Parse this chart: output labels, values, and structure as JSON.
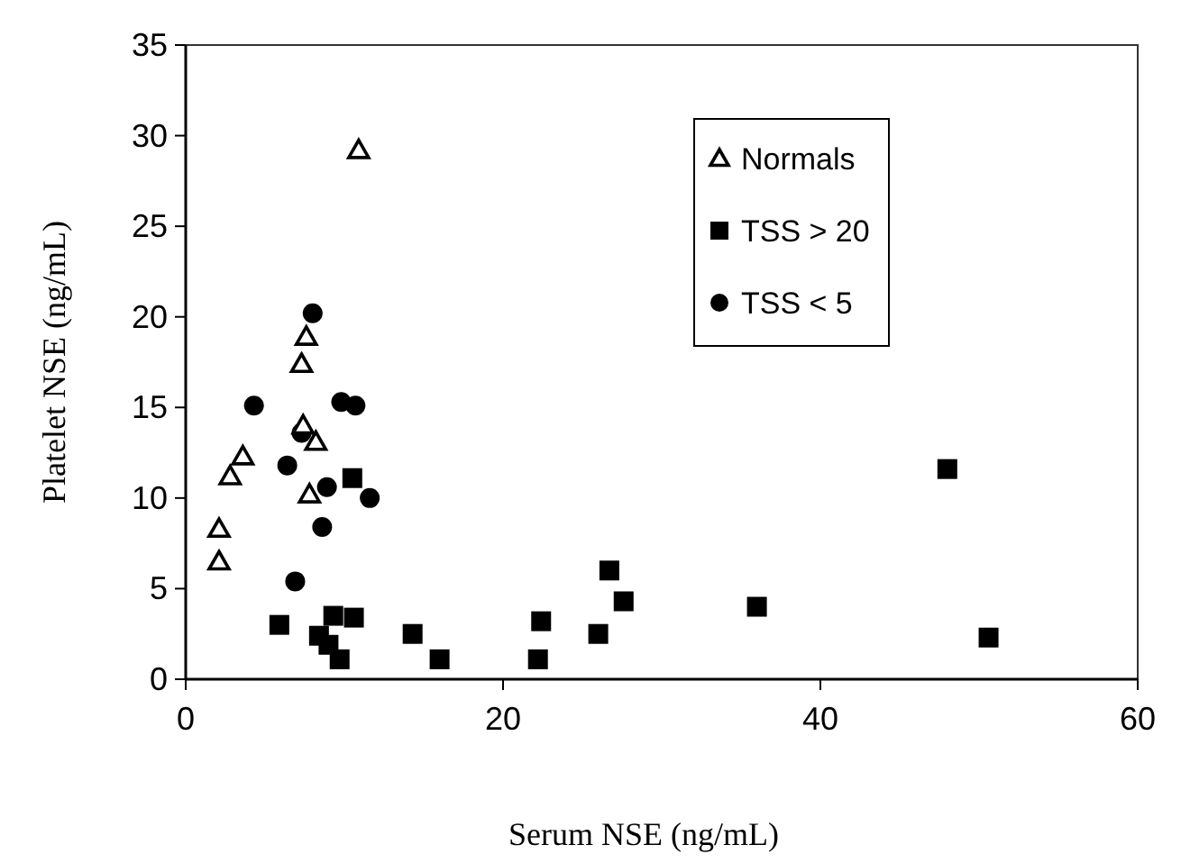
{
  "chart_data": {
    "type": "scatter",
    "xlabel": "Serum NSE (ng/mL)",
    "ylabel": "Platelet NSE (ng/mL)",
    "xlim": [
      0,
      60
    ],
    "xticks": [
      0,
      20,
      40,
      60
    ],
    "ylim": [
      0,
      35
    ],
    "yticks": [
      0,
      5,
      10,
      15,
      20,
      25,
      30,
      35
    ],
    "grid": false,
    "legend": "top right",
    "series": [
      {
        "name": "Normals",
        "color": "#000000",
        "marker": "triangle",
        "x": [
          2.1,
          2.1,
          2.8,
          3.6,
          7.3,
          7.6,
          7.4,
          8.2,
          7.8,
          10.9
        ],
        "values": [
          8.3,
          6.5,
          11.2,
          12.3,
          17.4,
          18.9,
          14.0,
          13.1,
          10.2,
          29.2
        ]
      },
      {
        "name": "TSS > 20",
        "color": "#000000",
        "marker": "square",
        "x": [
          5.9,
          10.5,
          9.3,
          10.6,
          8.4,
          9.7,
          9.0,
          14.3,
          16.0,
          22.4,
          22.2,
          26.0,
          26.7,
          27.6,
          36.0,
          48.0,
          50.6
        ],
        "values": [
          3.0,
          11.1,
          3.5,
          3.4,
          2.4,
          1.1,
          1.9,
          2.5,
          1.1,
          3.2,
          1.1,
          2.5,
          6.0,
          4.3,
          4.0,
          11.6,
          2.3
        ]
      },
      {
        "name": "TSS < 5",
        "color": "#000000",
        "marker": "circle",
        "x": [
          4.3,
          6.4,
          6.9,
          8.0,
          7.3,
          9.8,
          10.7,
          8.9,
          11.6,
          8.6
        ],
        "values": [
          15.1,
          11.8,
          5.4,
          20.2,
          13.6,
          15.3,
          15.1,
          10.6,
          10.0,
          8.4
        ]
      }
    ]
  }
}
